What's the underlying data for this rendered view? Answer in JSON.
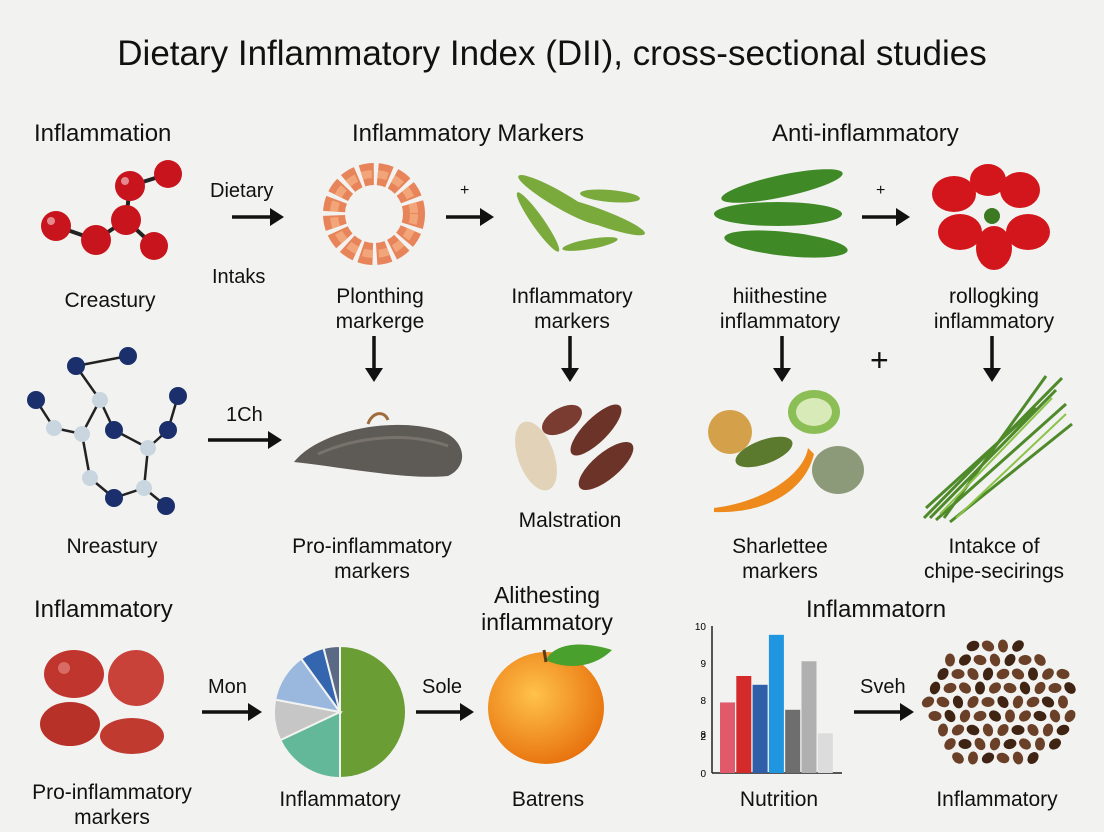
{
  "title": "Dietary Inflammatory Index (DII), cross-sectional studies",
  "headers": {
    "inflammation": "Inflammation",
    "inflammatory_markers": "Inflammatory Markers",
    "anti_inflammatory": "Anti-inflammatory",
    "inflammatory": "Inflammatory",
    "alithesting": "Alithesting",
    "alithesting_sub": "inflammatory",
    "inflammatorn": "Inflammatorn"
  },
  "labels": {
    "creastury": "Creastury",
    "plonthing": "Plonthing",
    "markerge": "markerge",
    "inflammatory_markers_a": "Inflammatory",
    "inflammatory_markers_b": "markers",
    "hiithestine": "hiithestine",
    "hiithestine_sub": "inflammatory",
    "rollogking": "rollogking",
    "rollogking_sub": "inflammatory",
    "nreastury": "Nreastury",
    "pro_markers_a": "Pro-inflammatory",
    "pro_markers_b": "markers",
    "malstration": "Malstration",
    "sharlettee": "Sharlettee",
    "sharlettee_sub": "markers",
    "intakce": "Intakce of",
    "intakce_sub": "chipe-secirings",
    "pro_markers2_a": "Pro-inflammatory",
    "pro_markers2_b": "markers",
    "inflammatory_pie": "Inflammatory",
    "batrens": "Batrens",
    "nutrition": "Nutrition",
    "inflammatory_beans": "Inflammatory"
  },
  "arrows": {
    "dietary": "Dietary",
    "intaks": "Intaks",
    "plus1": "+",
    "plus2": "+",
    "plus_big": "+",
    "ich": "1Ch",
    "mon": "Mon",
    "sole": "Sole",
    "sveh": "Sveh"
  },
  "colors": {
    "molecule_red": "#c8141c",
    "molecule_navy": "#1a2f6b",
    "pie_green": "#6a9e35",
    "pie_teal": "#63b89a",
    "pie_gray": "#c6c6c6",
    "pie_lightblue": "#9ab8de",
    "pie_blue": "#3466b0",
    "pie_slate": "#5a6a84"
  },
  "pie_data": {
    "type": "pie",
    "values": [
      50,
      18,
      10,
      12,
      6,
      4
    ],
    "colors": [
      "#6a9e35",
      "#63b89a",
      "#c6c6c6",
      "#9ab8de",
      "#3466b0",
      "#5a6a84"
    ]
  },
  "chart_data": {
    "type": "bar",
    "y_ticks": [
      "10",
      "9",
      "8",
      "8",
      "2",
      "0"
    ],
    "values": [
      4.8,
      6.6,
      6.0,
      9.4,
      4.3,
      7.6,
      2.7
    ],
    "colors": [
      "#e05a6b",
      "#d42a2a",
      "#2f5fa8",
      "#2196e0",
      "#6e6e6e",
      "#b0b0b0",
      "#dcdcdc"
    ],
    "ylim": [
      0,
      10
    ],
    "xlabel": "Nutrition",
    "title": "Inflammatorn"
  }
}
